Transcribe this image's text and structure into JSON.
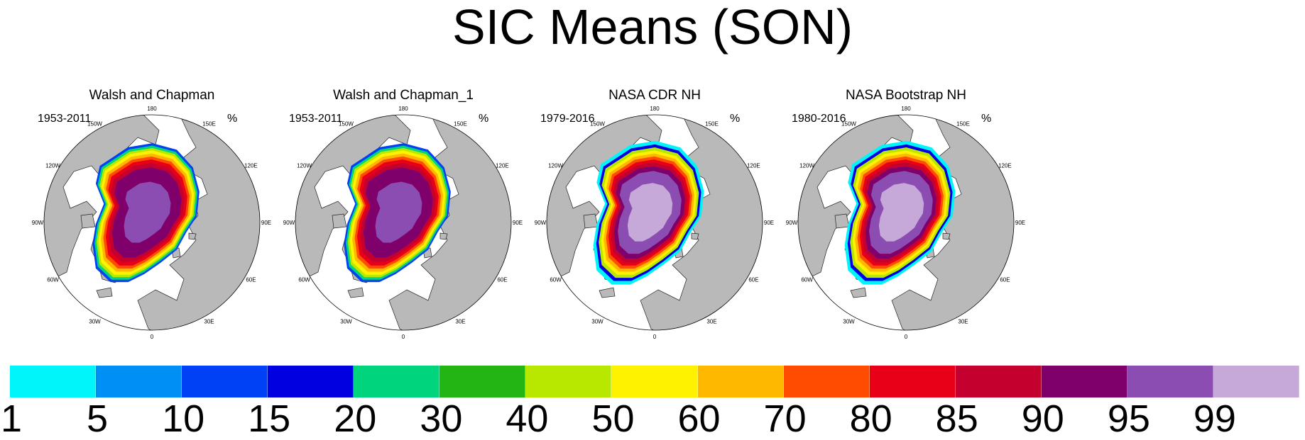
{
  "title": "SIC Means (SON)",
  "panels": [
    {
      "title": "Walsh and Chapman",
      "period": "1953-2011",
      "unit": "%",
      "style": "wc"
    },
    {
      "title": "Walsh and Chapman_1",
      "period": "1953-2011",
      "unit": "%",
      "style": "wc"
    },
    {
      "title": "NASA CDR NH",
      "period": "1979-2016",
      "unit": "%",
      "style": "nasa"
    },
    {
      "title": "NASA Bootstrap NH",
      "period": "1980-2016",
      "unit": "%",
      "style": "nasa"
    }
  ],
  "longitude_labels": [
    "180",
    "150E",
    "120E",
    "90E",
    "60E",
    "30E",
    "0",
    "30W",
    "60W",
    "90W",
    "120W",
    "150W"
  ],
  "colorbar": {
    "colors": [
      "#00f5fb",
      "#0090f5",
      "#0041f5",
      "#0000e0",
      "#00d47c",
      "#22b514",
      "#b9e800",
      "#fff200",
      "#ffb800",
      "#ff4c00",
      "#e70018",
      "#c4002f",
      "#80006b",
      "#8b4db1",
      "#c6a8d9"
    ],
    "labels": [
      "1",
      "5",
      "10",
      "15",
      "20",
      "30",
      "40",
      "50",
      "60",
      "70",
      "80",
      "85",
      "90",
      "95",
      "99"
    ]
  },
  "map_colors": {
    "land": "#b9b9b9",
    "ocean": "#ffffff",
    "coast": "#222222"
  }
}
